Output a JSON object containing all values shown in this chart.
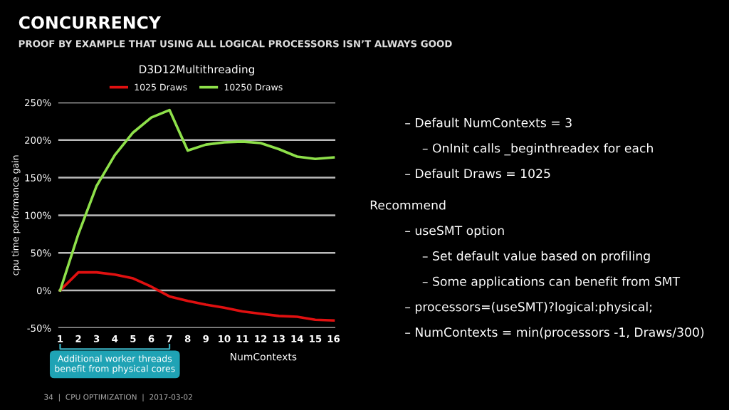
{
  "chart_data": {
    "type": "line",
    "title": "CONCURRENCY",
    "subtitle": "PROOF BY EXAMPLE THAT USING ALL LOGICAL PROCESSORS ISN’T ALWAYS GOOD",
    "xlabel": "NumContexts",
    "ylabel": "cpu time performance gain",
    "categories": [
      "1",
      "2",
      "3",
      "4",
      "5",
      "6",
      "7",
      "8",
      "9",
      "10",
      "11",
      "12",
      "13",
      "14",
      "15",
      "16"
    ],
    "series": [
      {
        "name": "1025 Draws",
        "color": "#e01010",
        "values": [
          0,
          24,
          24,
          21,
          16,
          5,
          -8,
          -14,
          -19,
          -23,
          -28,
          -31,
          -34,
          -35,
          -39,
          -40
        ]
      },
      {
        "name": "10250 Draws",
        "color": "#8ee04a",
        "values": [
          0,
          75,
          139,
          180,
          210,
          230,
          240,
          186,
          194,
          197,
          198,
          196,
          188,
          178,
          175,
          177
        ]
      }
    ],
    "ylim": [
      -50,
      250
    ],
    "yticks": [
      {
        "value": -50,
        "label": "-50%"
      },
      {
        "value": 0,
        "label": "0%"
      },
      {
        "value": 50,
        "label": "50%"
      },
      {
        "value": 100,
        "label": "100%"
      },
      {
        "value": 150,
        "label": "150%"
      },
      {
        "value": 200,
        "label": "200%"
      },
      {
        "value": 250,
        "label": "250%"
      }
    ],
    "grid": "y",
    "legend": "top",
    "marker": "none",
    "line_style": "solid",
    "annotations": [
      "D3D12Multithreading",
      "– Default NumContexts = 3",
      "– OnInit calls _beginthreadex for each",
      "– Default Draws = 1025",
      "Recommend",
      "– useSMT option",
      "– Set default value based on profiling",
      "– Some applications can benefit from SMT",
      "– processors=(useSMT)?logical:physical;",
      "– NumContexts = min(processors -1, Draws/300)",
      "Additional worker threads\nbenefit from physical cores",
      "34  |  CPU OPTIMIZATION  |  2017-03-02"
    ]
  }
}
